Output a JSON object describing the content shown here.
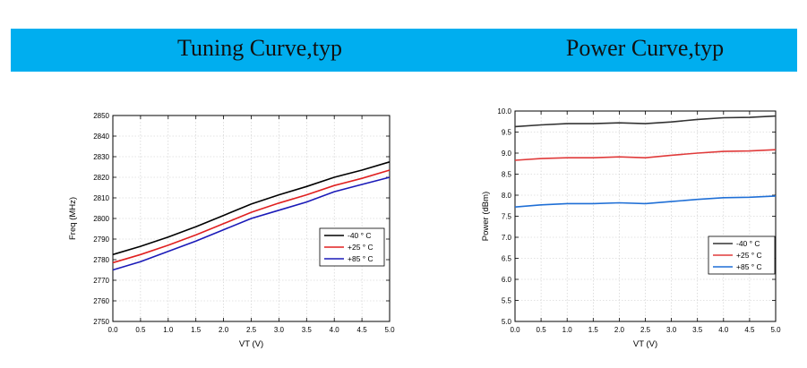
{
  "banner": {
    "left_title": "Tuning Curve,typ",
    "right_title": "Power Curve,typ",
    "color": "#00aeef"
  },
  "chart_data": [
    {
      "type": "line",
      "title": "Tuning Curve,typ",
      "xlabel": "VT (V)",
      "ylabel": "Freq (MHz)",
      "xlim": [
        0,
        5
      ],
      "ylim": [
        2750,
        2850
      ],
      "xticks": [
        0.0,
        0.5,
        1.0,
        1.5,
        2.0,
        2.5,
        3.0,
        3.5,
        4.0,
        4.5,
        5.0
      ],
      "yticks": [
        2750,
        2760,
        2770,
        2780,
        2790,
        2800,
        2810,
        2820,
        2830,
        2840,
        2850
      ],
      "xtick_labels": [
        "0.0",
        "0.5",
        "1.0",
        "1.5",
        "2.0",
        "2.5",
        "3.0",
        "3.5",
        "4.0",
        "4.5",
        "5.0"
      ],
      "ytick_labels": [
        "2750",
        "2760",
        "2770",
        "2780",
        "2790",
        "2800",
        "2810",
        "2820",
        "2830",
        "2840",
        "2850"
      ],
      "grid": true,
      "legend_position": "lower-right",
      "x": [
        0.0,
        0.5,
        1.0,
        1.5,
        2.0,
        2.5,
        3.0,
        3.5,
        4.0,
        4.5,
        5.0
      ],
      "series": [
        {
          "name": "-40 ° C",
          "color": "#000000",
          "values": [
            2782.5,
            2786.5,
            2791,
            2796,
            2801.5,
            2807,
            2811.5,
            2815.5,
            2820,
            2823.5,
            2827.5
          ]
        },
        {
          "name": "+25 ° C",
          "color": "#e02020",
          "values": [
            2778.5,
            2782.5,
            2787,
            2792,
            2797.5,
            2803,
            2807.5,
            2811.5,
            2816,
            2819.5,
            2823.5
          ]
        },
        {
          "name": "+85 ° C",
          "color": "#1a1ab8",
          "values": [
            2775,
            2779,
            2784,
            2789,
            2794.5,
            2800,
            2804,
            2808,
            2813,
            2816.5,
            2820
          ]
        }
      ]
    },
    {
      "type": "line",
      "title": "Power Curve,typ",
      "xlabel": "VT (V)",
      "ylabel": "Power (dBm)",
      "xlim": [
        0,
        5
      ],
      "ylim": [
        5.0,
        10.0
      ],
      "xticks": [
        0.0,
        0.5,
        1.0,
        1.5,
        2.0,
        2.5,
        3.0,
        3.5,
        4.0,
        4.5,
        5.0
      ],
      "yticks": [
        5.0,
        5.5,
        6.0,
        6.5,
        7.0,
        7.5,
        8.0,
        8.5,
        9.0,
        9.5,
        10.0
      ],
      "xtick_labels": [
        "0.0",
        "0.5",
        "1.0",
        "1.5",
        "2.0",
        "2.5",
        "3.0",
        "3.5",
        "4.0",
        "4.5",
        "5.0"
      ],
      "ytick_labels": [
        "5.0",
        "5.5",
        "6.0",
        "6.5",
        "7.0",
        "7.5",
        "8.0",
        "8.5",
        "9.0",
        "9.5",
        "10.0"
      ],
      "grid": true,
      "legend_position": "center-right",
      "x": [
        0.0,
        0.5,
        1.0,
        1.5,
        2.0,
        2.5,
        3.0,
        3.5,
        4.0,
        4.5,
        5.0
      ],
      "series": [
        {
          "name": "-40 ° C",
          "color": "#333333",
          "values": [
            9.63,
            9.67,
            9.7,
            9.7,
            9.72,
            9.7,
            9.74,
            9.8,
            9.84,
            9.85,
            9.88
          ]
        },
        {
          "name": "+25 ° C",
          "color": "#e03a3a",
          "values": [
            8.83,
            8.87,
            8.89,
            8.89,
            8.91,
            8.89,
            8.95,
            9.0,
            9.04,
            9.05,
            9.08
          ]
        },
        {
          "name": "+85 ° C",
          "color": "#1f6fd6",
          "values": [
            7.72,
            7.77,
            7.8,
            7.8,
            7.82,
            7.8,
            7.85,
            7.9,
            7.94,
            7.95,
            7.98
          ]
        }
      ]
    }
  ]
}
